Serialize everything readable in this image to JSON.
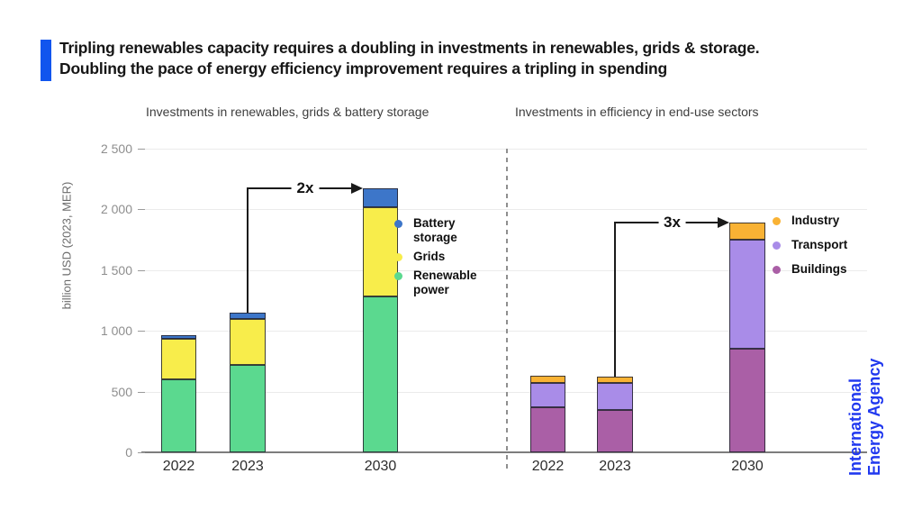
{
  "header": {
    "title_line1": "Tripling renewables capacity requires a doubling in investments in renewables, grids & storage.",
    "title_line2": "Doubling the pace of energy efficiency improvement requires a tripling in spending",
    "accent_color": "#1155ee"
  },
  "axis": {
    "label": "billion USD (2023, MER)",
    "tick_values": [
      0,
      500,
      1000,
      1500,
      2000,
      2500
    ],
    "tick_labels": [
      "0",
      "500",
      "1 000",
      "1 500",
      "2 000",
      "2 500"
    ],
    "ylim": [
      0,
      2500
    ],
    "grid": true
  },
  "branding": {
    "line1": "International",
    "line2": "Energy Agency",
    "color": "#2038ef"
  },
  "chart_data": [
    {
      "type": "bar",
      "stacked": true,
      "panel": "left",
      "title": "Investments in renewables, grids & battery storage",
      "categories": [
        "2022",
        "2023",
        "2030"
      ],
      "series": [
        {
          "name": "Renewable power",
          "color": "#5bd98f",
          "values": [
            600,
            720,
            1280
          ]
        },
        {
          "name": "Grids",
          "color": "#f8ed4b",
          "values": [
            335,
            380,
            740
          ]
        },
        {
          "name": "Battery storage",
          "color": "#3d76c9",
          "values": [
            30,
            50,
            150
          ]
        }
      ],
      "totals": [
        965,
        1150,
        2170
      ],
      "legend_order": [
        "Battery storage",
        "Grids",
        "Renewable power"
      ],
      "annotation": {
        "label": "2x",
        "from": "2023",
        "to": "2030"
      },
      "ylabel": "billion USD (2023, MER)",
      "ylim": [
        0,
        2500
      ]
    },
    {
      "type": "bar",
      "stacked": true,
      "panel": "right",
      "title": "Investments in efficiency in end-use sectors",
      "categories": [
        "2022",
        "2023",
        "2030"
      ],
      "series": [
        {
          "name": "Buildings",
          "color": "#aa5fa6",
          "values": [
            370,
            350,
            850
          ]
        },
        {
          "name": "Transport",
          "color": "#a98ce8",
          "values": [
            200,
            220,
            900
          ]
        },
        {
          "name": "Industry",
          "color": "#f9b234",
          "values": [
            60,
            50,
            140
          ]
        }
      ],
      "totals": [
        630,
        620,
        1890
      ],
      "legend_order": [
        "Industry",
        "Transport",
        "Buildings"
      ],
      "annotation": {
        "label": "3x",
        "from": "2023",
        "to": "2030"
      },
      "ylabel": "billion USD (2023, MER)",
      "ylim": [
        0,
        2500
      ]
    }
  ]
}
